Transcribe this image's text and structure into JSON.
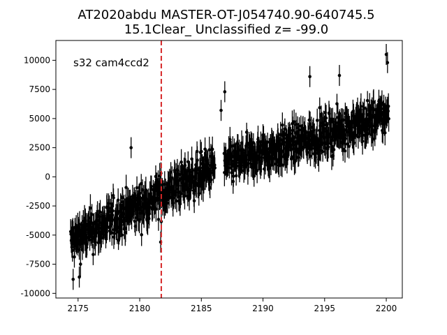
{
  "chart_data": {
    "type": "scatter",
    "title_line1": "AT2020abdu  MASTER-OT-J054740.90-640745.5",
    "title_line2": "15.1Clear_ Unclassified z= -99.0",
    "annotation": "s32 cam4ccd2",
    "xlabel": "",
    "ylabel": "",
    "xlim": [
      2173.2,
      2201.3
    ],
    "ylim": [
      -10400,
      11700
    ],
    "x_ticks": [
      2175,
      2180,
      2185,
      2190,
      2195,
      2200
    ],
    "y_ticks": [
      -10000,
      -7500,
      -5000,
      -2500,
      0,
      2500,
      5000,
      7500,
      10000
    ],
    "grid": false,
    "marker_color": "#000000",
    "vline": {
      "x": 2181.75,
      "color": "#d62728",
      "style": "dashed"
    },
    "segments": [
      {
        "x_start": 2174.4,
        "x_end": 2186.1,
        "y_start": -5600,
        "y_end": 900,
        "scatter": 1500,
        "error": 1000
      },
      {
        "x_start": 2186.85,
        "x_end": 2200.2,
        "y_start": 1000,
        "y_end": 5300,
        "scatter": 1400,
        "error": 1000
      }
    ],
    "outliers": [
      {
        "x": 2174.6,
        "y": -8800
      },
      {
        "x": 2175.1,
        "y": -8600
      },
      {
        "x": 2179.3,
        "y": 2500
      },
      {
        "x": 2181.7,
        "y": -5600
      },
      {
        "x": 2186.6,
        "y": 5700
      },
      {
        "x": 2186.9,
        "y": 7300
      },
      {
        "x": 2193.8,
        "y": 8600
      },
      {
        "x": 2196.2,
        "y": 8700
      },
      {
        "x": 2200.0,
        "y": 10500
      },
      {
        "x": 2200.1,
        "y": 9800
      }
    ]
  }
}
